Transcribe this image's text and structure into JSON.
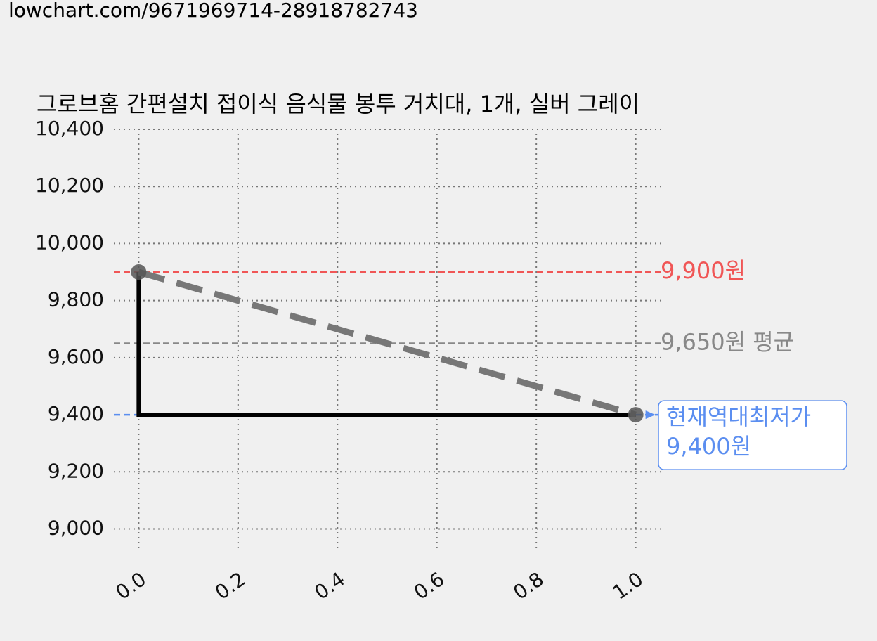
{
  "url": "lowchart.com/9671969714-28918782743",
  "chart_data": {
    "type": "line",
    "title": "그로브홈 간편설치 접이식 음식물 봉투 거치대, 1개, 실버 그레이",
    "x": [
      0,
      1
    ],
    "series": [
      {
        "color": "#000000",
        "style": "step",
        "values": [
          9900,
          9400
        ]
      },
      {
        "color": "#777777",
        "style": "dashed",
        "markers": true,
        "values": [
          9900,
          9400
        ]
      }
    ],
    "xlim": [
      -0.05,
      1.05
    ],
    "xticks": [
      {
        "value": 0,
        "label": "0.0"
      },
      0.2,
      0.4,
      0.6,
      0.8,
      {
        "value": 1,
        "label": "1.0"
      }
    ],
    "ylim": [
      8920,
      10400
    ],
    "yticks": [
      {
        "value": 9000,
        "label": "9,000"
      },
      {
        "value": 9200,
        "label": "9,200"
      },
      {
        "value": 9400,
        "label": "9,400"
      },
      {
        "value": 9600,
        "label": "9,600"
      },
      {
        "value": 9800,
        "label": "9,800"
      },
      {
        "value": 10000,
        "label": "10,000"
      },
      {
        "value": 10200,
        "label": "10,200"
      },
      {
        "value": 10400,
        "label": "10,400"
      }
    ],
    "grid": true,
    "hlines": [
      {
        "value": 9900,
        "label": "9,900원",
        "color": "#f05656"
      },
      {
        "value": 9650,
        "label": "9,650원 평균",
        "color": "#888888"
      },
      {
        "value": 9400,
        "lines": [
          "현재역대최저가",
          "9,400원"
        ],
        "color": "#5b8ef0",
        "boxed": true
      }
    ]
  }
}
